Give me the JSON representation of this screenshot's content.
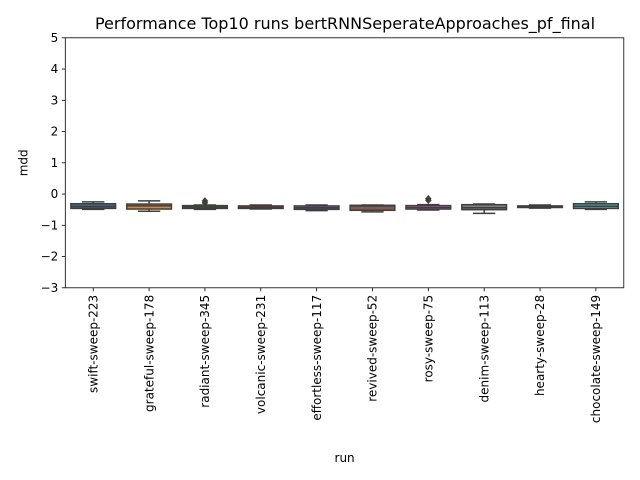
{
  "chart_data": {
    "type": "box",
    "title": "Performance Top10 runs bertRNNSeperateApproaches_pf_final",
    "xlabel": "run",
    "ylabel": "mdd",
    "ylim": [
      -3,
      5
    ],
    "yticks": [
      -3,
      -2,
      -1,
      0,
      1,
      2,
      3,
      4,
      5
    ],
    "ytick_labels": [
      "−3",
      "−2",
      "−1",
      "0",
      "1",
      "2",
      "3",
      "4",
      "5"
    ],
    "grid": false,
    "legend": "none",
    "categories": [
      "swift-sweep-223",
      "grateful-sweep-178",
      "radiant-sweep-345",
      "volcanic-sweep-231",
      "effortless-sweep-117",
      "revived-sweep-52",
      "rosy-sweep-75",
      "denim-sweep-113",
      "hearty-sweep-28",
      "chocolate-sweep-149"
    ],
    "boxes": [
      {
        "whislo": -0.49,
        "q1": -0.46,
        "med": -0.4,
        "q3": -0.31,
        "whishi": -0.25,
        "fliers": [],
        "color": "#1f77b4"
      },
      {
        "whislo": -0.55,
        "q1": -0.48,
        "med": -0.38,
        "q3": -0.32,
        "whishi": -0.22,
        "fliers": [],
        "color": "#ff7f0e"
      },
      {
        "whislo": -0.49,
        "q1": -0.46,
        "med": -0.42,
        "q3": -0.37,
        "whishi": -0.35,
        "fliers": [
          -0.22,
          -0.28
        ],
        "color": "#2ca02c"
      },
      {
        "whislo": -0.48,
        "q1": -0.46,
        "med": -0.43,
        "q3": -0.38,
        "whishi": -0.35,
        "fliers": [],
        "color": "#d62728"
      },
      {
        "whislo": -0.53,
        "q1": -0.49,
        "med": -0.44,
        "q3": -0.38,
        "whishi": -0.35,
        "fliers": [],
        "color": "#9467bd"
      },
      {
        "whislo": -0.57,
        "q1": -0.52,
        "med": -0.38,
        "q3": -0.36,
        "whishi": -0.35,
        "fliers": [],
        "color": "#8c564b"
      },
      {
        "whislo": -0.51,
        "q1": -0.48,
        "med": -0.43,
        "q3": -0.37,
        "whishi": -0.34,
        "fliers": [
          -0.15,
          -0.2
        ],
        "color": "#e377c2"
      },
      {
        "whislo": -0.62,
        "q1": -0.5,
        "med": -0.44,
        "q3": -0.34,
        "whishi": -0.32,
        "fliers": [],
        "color": "#7f7f7f"
      },
      {
        "whislo": -0.45,
        "q1": -0.43,
        "med": -0.4,
        "q3": -0.38,
        "whishi": -0.35,
        "fliers": [],
        "color": "#bcbd22"
      },
      {
        "whislo": -0.49,
        "q1": -0.46,
        "med": -0.39,
        "q3": -0.31,
        "whishi": -0.25,
        "fliers": [],
        "color": "#17becf"
      }
    ]
  }
}
